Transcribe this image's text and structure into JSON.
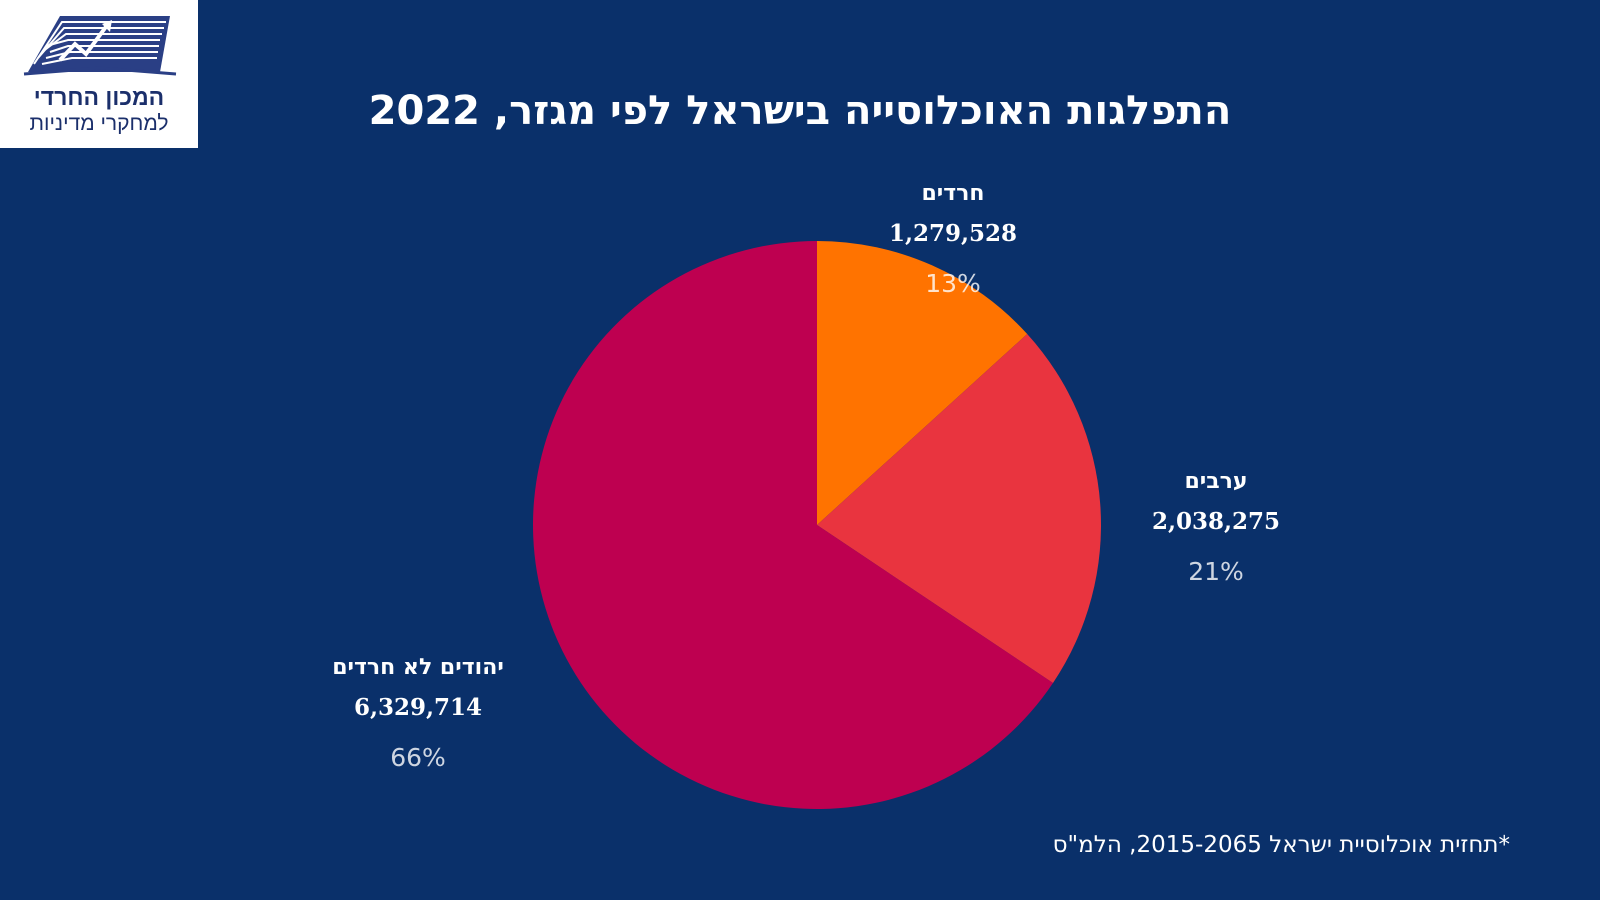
{
  "logo": {
    "line1": "המכון החרדי",
    "line2": "למחקרי מדיניות"
  },
  "footnote": "*תחזית אוכלוסיית ישראל 2015-2065, הלמ\"ס",
  "colors": {
    "background": "#0a306a",
    "haredim": "#ff7300",
    "arabs": "#e9343f",
    "non_haredi_jews": "#be0050"
  },
  "chart_data": {
    "type": "pie",
    "title": "התפלגות האוכלוסייה בישראל לפי מגזר, 2022",
    "legend": "none",
    "slices": [
      {
        "label": "חרדים",
        "value": 1279528,
        "value_label": "1,279,528",
        "percent": 13,
        "percent_label": "13%",
        "color": "#ff7300"
      },
      {
        "label": "ערבים",
        "value": 2038275,
        "value_label": "2,038,275",
        "percent": 21,
        "percent_label": "21%",
        "color": "#e9343f"
      },
      {
        "label": "יהודים לא חרדים",
        "value": 6329714,
        "value_label": "6,329,714",
        "percent": 66,
        "percent_label": "66%",
        "color": "#be0050"
      }
    ]
  }
}
